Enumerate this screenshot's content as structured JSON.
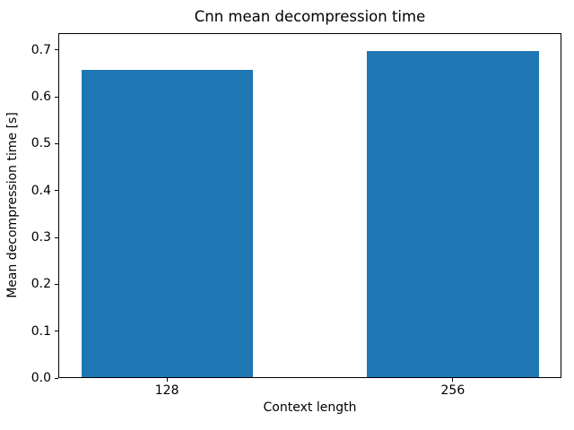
{
  "chart_data": {
    "type": "bar",
    "title": "Cnn mean decompression time",
    "xlabel": "Context length",
    "ylabel": "Mean decompression time [s]",
    "categories": [
      "128",
      "256"
    ],
    "values": [
      0.66,
      0.7
    ],
    "ylim": [
      0,
      0.736
    ],
    "yticks": [
      0.0,
      0.1,
      0.2,
      0.3,
      0.4,
      0.5,
      0.6,
      0.7
    ],
    "ytick_labels": [
      "0.0",
      "0.1",
      "0.2",
      "0.3",
      "0.4",
      "0.5",
      "0.6",
      "0.7"
    ],
    "xlim": [
      -0.38,
      1.38
    ],
    "bar_width": 0.6,
    "bar_color": "#1f77b4",
    "grid": false,
    "legend_position": "none",
    "background_color": "#ffffff",
    "spine_color": "#000000"
  }
}
